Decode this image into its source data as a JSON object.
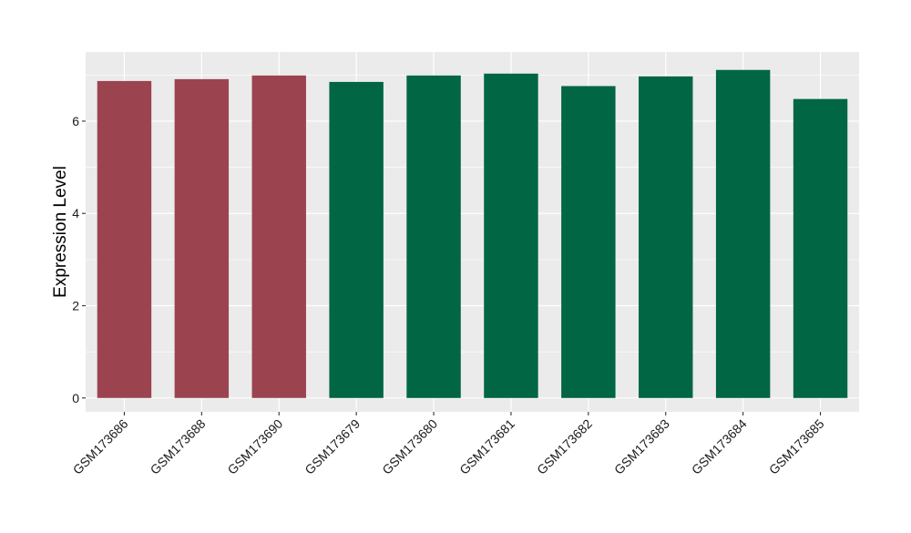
{
  "chart_data": {
    "type": "bar",
    "title": "",
    "xlabel": "",
    "ylabel": "Expression Level",
    "ylim": [
      -0.3,
      7.5
    ],
    "yticks": [
      0,
      2,
      4,
      6
    ],
    "grid": true,
    "categories": [
      "GSM173686",
      "GSM173688",
      "GSM173690",
      "GSM173679",
      "GSM173680",
      "GSM173681",
      "GSM173682",
      "GSM173683",
      "GSM173684",
      "GSM173685"
    ],
    "values": [
      6.87,
      6.91,
      6.99,
      6.85,
      6.99,
      7.03,
      6.76,
      6.97,
      7.11,
      6.48
    ],
    "colors": [
      "#9b4450",
      "#9b4450",
      "#9b4450",
      "#006643",
      "#006643",
      "#006643",
      "#006643",
      "#006643",
      "#006643",
      "#006643"
    ],
    "panel_background": "#ebebeb",
    "grid_color": "#ffffff"
  }
}
